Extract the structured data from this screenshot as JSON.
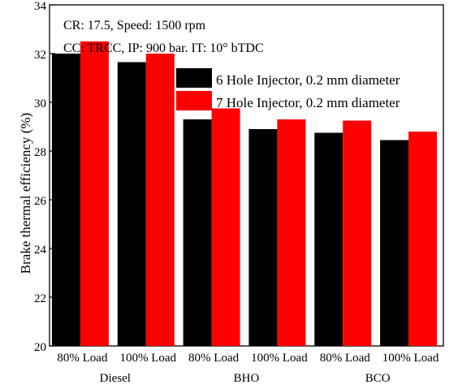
{
  "chart_data": {
    "type": "bar",
    "annotations": [
      "CR: 17.5, Speed: 1500 rpm",
      "CC: TRCC, IP: 900 bar. IT: 10° bTDC"
    ],
    "ylabel": "Brake thermal efficiency (%)",
    "xlabel": "",
    "ylim": [
      20,
      34
    ],
    "yticks": [
      20,
      22,
      24,
      26,
      28,
      30,
      32,
      34
    ],
    "categories": [
      "80% Load",
      "100% Load",
      "80% Load",
      "100% Load",
      "80% Load",
      "100% Load"
    ],
    "groups": [
      {
        "label": "Diesel",
        "span": [
          0,
          1
        ]
      },
      {
        "label": "BHO",
        "span": [
          2,
          3
        ]
      },
      {
        "label": "BCO",
        "span": [
          4,
          5
        ]
      }
    ],
    "series": [
      {
        "name": "6 Hole Injector, 0.2 mm diameter",
        "color": "#000000",
        "values": [
          32.0,
          31.65,
          29.3,
          28.9,
          28.75,
          28.45
        ]
      },
      {
        "name": "7 Hole Injector, 0.2 mm diameter",
        "color": "#ff0000",
        "values": [
          32.5,
          32.0,
          29.75,
          29.3,
          29.25,
          28.8
        ]
      }
    ],
    "legend_position": "top-right",
    "grid": false
  }
}
